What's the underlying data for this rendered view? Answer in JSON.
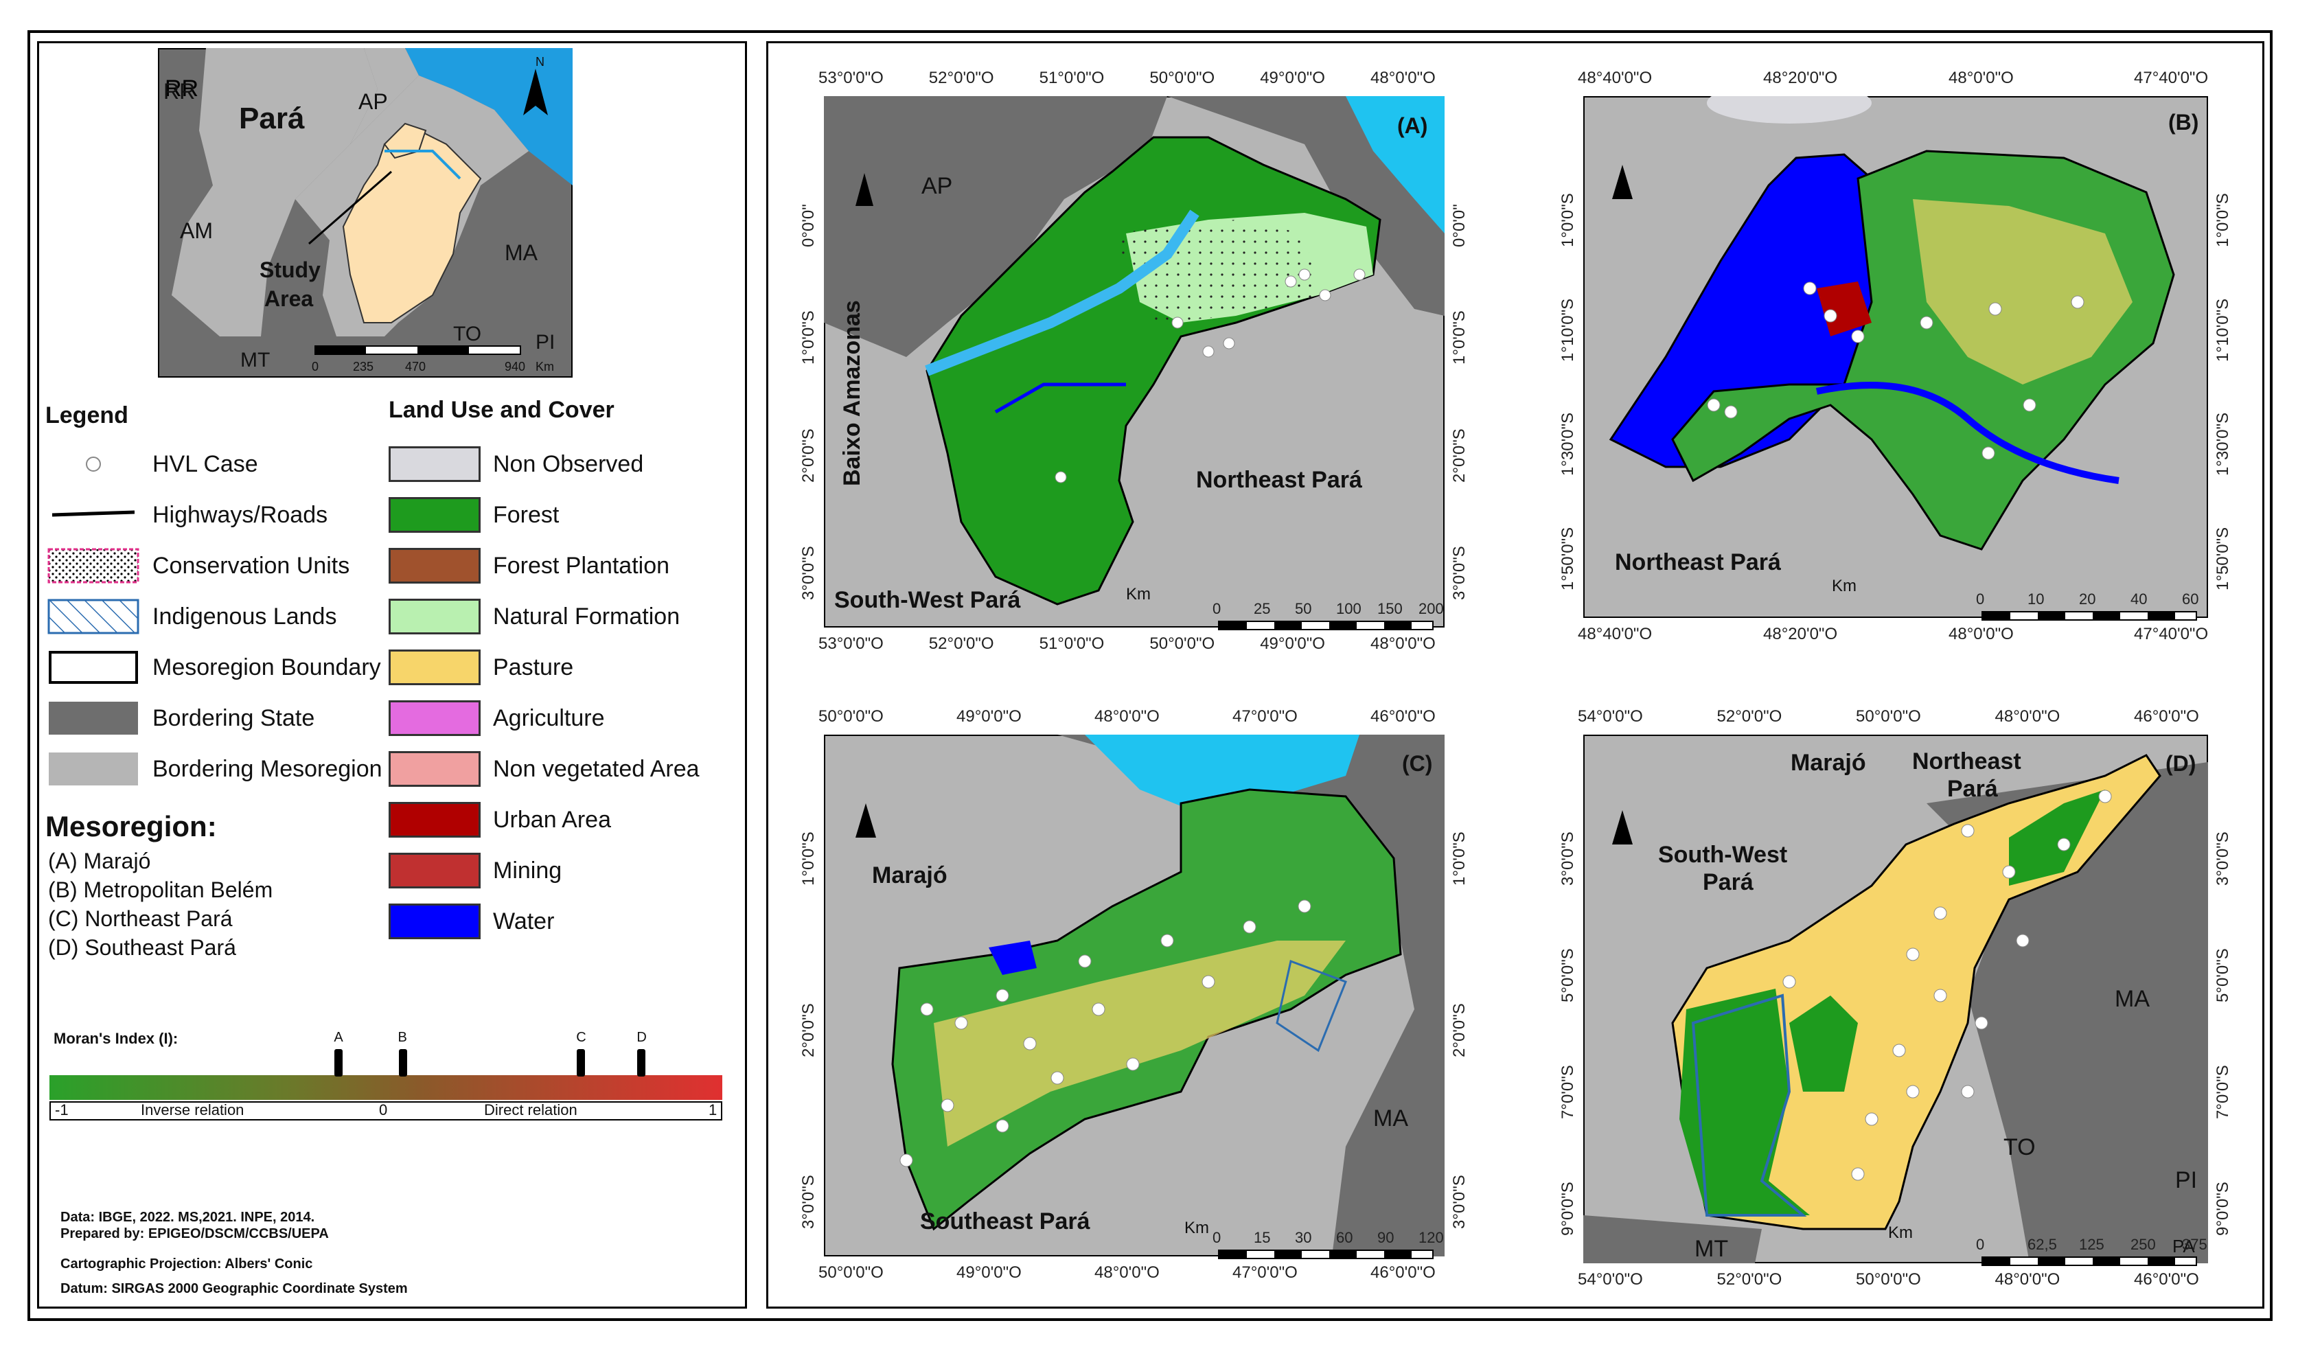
{
  "inset": {
    "labels": [
      "RR",
      "Pará",
      "AP",
      "AM",
      "MA",
      "Study",
      "Area",
      "TO",
      "PI",
      "MT"
    ],
    "scale_ticks": [
      "0",
      "235",
      "470",
      "940"
    ],
    "scale_unit": "Km",
    "north": "N"
  },
  "legend": {
    "title": "Legend",
    "items": [
      "HVL Case",
      "Highways/Roads",
      "Conservation Units",
      "Indigenous Lands",
      "Mesoregion Boundary",
      "Bordering State",
      "Bordering Mesoregion"
    ],
    "landuse_title": "Land Use and Cover",
    "landuse": [
      {
        "label": "Non Observed",
        "color": "#d9d9de"
      },
      {
        "label": "Forest",
        "color": "#1e9b1e"
      },
      {
        "label": "Forest Plantation",
        "color": "#a0522d"
      },
      {
        "label": "Natural Formation",
        "color": "#b9f0b0"
      },
      {
        "label": "Pasture",
        "color": "#f7d56a"
      },
      {
        "label": "Agriculture",
        "color": "#e46be0"
      },
      {
        "label": "Non vegetated Area",
        "color": "#f0a0a0"
      },
      {
        "label": "Urban Area",
        "color": "#b00000"
      },
      {
        "label": "Mining",
        "color": "#c03030"
      },
      {
        "label": "Water",
        "color": "#0000ff"
      }
    ]
  },
  "mesoregion": {
    "title": "Mesoregion:",
    "items": [
      "(A) Marajó",
      "(B) Metropolitan Belém",
      "(C) Northeast Pará",
      "(D) Southeast Pará"
    ]
  },
  "moran": {
    "title": "Moran's Index (I):",
    "markers": [
      {
        "label": "A",
        "value": -0.14
      },
      {
        "label": "B",
        "value": 0.05
      },
      {
        "label": "C",
        "value": 0.58
      },
      {
        "label": "D",
        "value": 0.76
      }
    ],
    "left": "-1",
    "inverse": "Inverse relation",
    "zero": "0",
    "direct": "Direct relation",
    "right": "1"
  },
  "credits": {
    "data": "Data: IBGE, 2022. MS,2021. INPE, 2014.",
    "prepared": "Prepared  by: EPIGEO/DSCM/CCBS/UEPA",
    "projection": "Cartographic Projection: Albers' Conic",
    "datum": "Datum: SIRGAS 2000 Geographic Coordinate System"
  },
  "panelA": {
    "id": "(A)",
    "top_coords": [
      "53°0'0\"O",
      "52°0'0\"O",
      "51°0'0\"O",
      "50°0'0\"O",
      "49°0'0\"O",
      "48°0'0\"O"
    ],
    "left_coords": [
      "0°0'0\"",
      "1°0'0\"S",
      "2°0'0\"S",
      "3°0'0\"S"
    ],
    "labels": [
      "AP",
      "Baixo Amazonas",
      "Northeast Pará",
      "South-West Pará"
    ],
    "scale": [
      "0",
      "25",
      "50",
      "100",
      "150",
      "200"
    ],
    "scale_unit": "Km"
  },
  "panelB": {
    "id": "(B)",
    "top_coords": [
      "48°40'0\"O",
      "48°20'0\"O",
      "48°0'0\"O",
      "47°40'0\"O"
    ],
    "left_coords": [
      "1°0'0\"S",
      "1°10'0\"S",
      "1°30'0\"S",
      "1°50'0\"S"
    ],
    "labels": [
      "Northeast Pará"
    ],
    "scale": [
      "0",
      "10",
      "20",
      "40",
      "60"
    ],
    "scale_unit": "Km"
  },
  "panelC": {
    "id": "(C)",
    "top_coords": [
      "50°0'0\"O",
      "49°0'0\"O",
      "48°0'0\"O",
      "47°0'0\"O",
      "46°0'0\"O"
    ],
    "left_coords": [
      "1°0'0\"S",
      "2°0'0\"S",
      "3°0'0\"S"
    ],
    "labels": [
      "Marajó",
      "MA",
      "Southeast Pará"
    ],
    "scale": [
      "0",
      "15",
      "30",
      "60",
      "90",
      "120"
    ],
    "scale_unit": "Km"
  },
  "panelD": {
    "id": "(D)",
    "top_coords": [
      "54°0'0\"O",
      "52°0'0\"O",
      "50°0'0\"O",
      "48°0'0\"O",
      "46°0'0\"O"
    ],
    "left_coords": [
      "3°0'0\"S",
      "5°0'0\"S",
      "7°0'0\"S",
      "9°0'0\"S"
    ],
    "labels": [
      "Marajó",
      "Northeast",
      "Pará",
      "South-West",
      "Pará",
      "MA",
      "TO",
      "PI",
      "MT",
      "PA"
    ],
    "scale": [
      "0",
      "62,5",
      "125",
      "250",
      "375"
    ],
    "scale_unit": "Km"
  }
}
